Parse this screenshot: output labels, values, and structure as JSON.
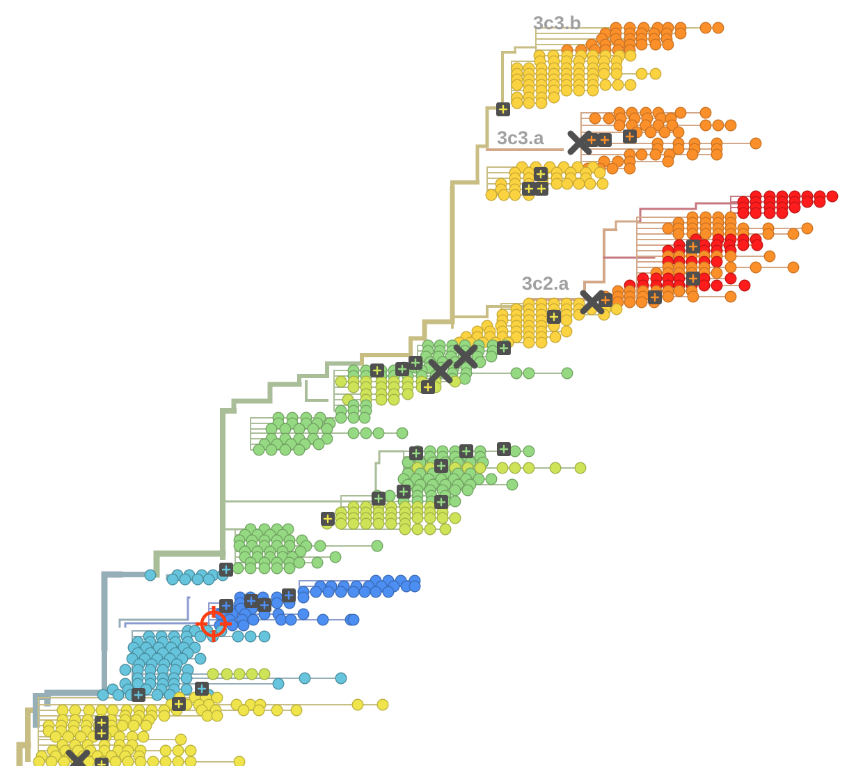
{
  "tree": {
    "clade_labels": [
      "3c3.b",
      "3c3.a",
      "3c2.a"
    ],
    "colors": {
      "teal": "#66c4dc",
      "blue": "#4d8ef2",
      "green": "#96d983",
      "lime": "#cfe358",
      "yellow": "#f0e44c",
      "gold": "#fbd341",
      "orange": "#fb8f2a",
      "red": "#ff1c1c",
      "trunk_teal": "#95aeb7",
      "trunk_green": "#a9bd98",
      "trunk_gold": "#c8bd83",
      "trunk_orange": "#d3a888",
      "trunk_red": "#c77780",
      "marker_dark": "#4f4f4f",
      "target_red": "#ff3d12"
    },
    "icons": {
      "mutation_badge": "plus-square-icon",
      "collapsed_node": "x-mark-icon",
      "selected_node": "crosshair-icon"
    }
  }
}
